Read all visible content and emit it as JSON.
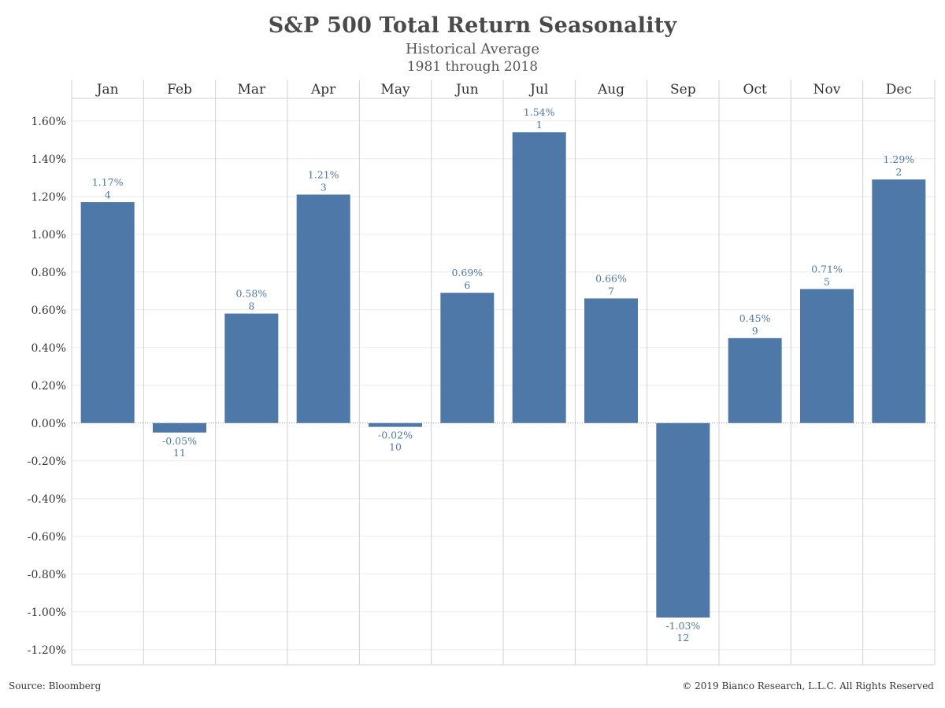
{
  "header": {
    "title": "S&P 500 Total Return Seasonality",
    "subtitle": "Historical Average",
    "period": "1981 through 2018"
  },
  "footer": {
    "source": "Source: Bloomberg",
    "copyright": "© 2019 Bianco Research, L.L.C. All Rights Reserved"
  },
  "colors": {
    "bar": "#4e78a7",
    "label": "#4e78a7",
    "grid": "#d0d0d0",
    "tick_text": "#333333"
  },
  "chart_data": {
    "type": "bar",
    "title": "S&P 500 Total Return Seasonality",
    "categories": [
      "Jan",
      "Feb",
      "Mar",
      "Apr",
      "May",
      "Jun",
      "Jul",
      "Aug",
      "Sep",
      "Oct",
      "Nov",
      "Dec"
    ],
    "values": [
      1.17,
      -0.05,
      0.58,
      1.21,
      -0.02,
      0.69,
      1.54,
      0.66,
      -1.03,
      0.45,
      0.71,
      1.29
    ],
    "value_labels": [
      "1.17%",
      "-0.05%",
      "0.58%",
      "1.21%",
      "-0.02%",
      "0.69%",
      "1.54%",
      "0.66%",
      "-1.03%",
      "0.45%",
      "0.71%",
      "1.29%"
    ],
    "ranks": [
      "4",
      "11",
      "8",
      "3",
      "10",
      "6",
      "1",
      "7",
      "12",
      "9",
      "5",
      "2"
    ],
    "y_ticks": [
      1.6,
      1.4,
      1.2,
      1.0,
      0.8,
      0.6,
      0.4,
      0.2,
      0.0,
      -0.2,
      -0.4,
      -0.6,
      -0.8,
      -1.0,
      -1.2
    ],
    "y_tick_labels": [
      "1.60%",
      "1.40%",
      "1.20%",
      "1.00%",
      "0.80%",
      "0.60%",
      "0.40%",
      "0.20%",
      "0.00%",
      "-0.20%",
      "-0.40%",
      "-0.60%",
      "-0.80%",
      "-1.00%",
      "-1.20%"
    ],
    "ylim": [
      -1.28,
      1.72
    ],
    "legend": "none",
    "grid": true,
    "month_labels_position": "top"
  }
}
